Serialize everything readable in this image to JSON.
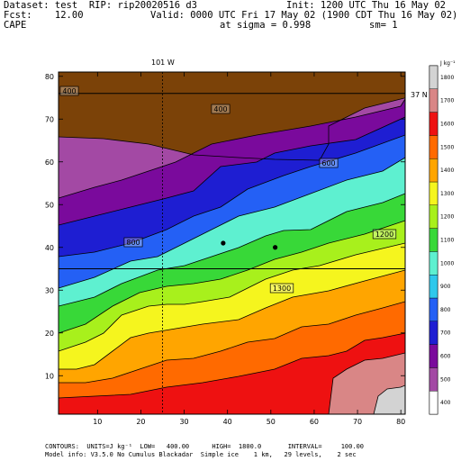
{
  "header": {
    "dataset_label": "Dataset:",
    "dataset": "test",
    "rip_label": "RIP:",
    "rip": "rip20020516 d3",
    "init": "Init: 1200 UTC Thu 16 May 02",
    "fcst_label": "Fcst:",
    "fcst": "12.00",
    "valid": "Valid: 0000 UTC Fri 17 May 02 (1900 CDT Thu 16 May 02)",
    "field": "CAPE",
    "sigma": "at sigma = 0.998",
    "sm": "sm= 1"
  },
  "footer": {
    "contours": "CONTOURS:  UNITS=J kg⁻¹  LOW=   400.00      HIGH=  1800.0       INTERVAL=     100.00",
    "model_info": "Model info: V3.5.0 No Cumulus Blackadar  Simple ice    1 km,   29 levels,    2 sec"
  },
  "map_labels": {
    "lon_label": "101 W",
    "lat_label": "37 N",
    "contour_labels": [
      "400",
      "400",
      "600",
      "800",
      "1200",
      "1300"
    ]
  },
  "chart_data": {
    "type": "heatmap",
    "title": "CAPE",
    "xlabel": "",
    "ylabel": "",
    "xlim": [
      1,
      81
    ],
    "ylim": [
      1,
      81
    ],
    "xticks": [
      10,
      20,
      30,
      40,
      50,
      60,
      70,
      80
    ],
    "yticks": [
      10,
      20,
      30,
      40,
      50,
      60,
      70,
      80
    ],
    "colorbar": {
      "units": "J kg⁻¹",
      "ticks": [
        400,
        500,
        600,
        700,
        800,
        900,
        1000,
        1100,
        1200,
        1300,
        1400,
        1500,
        1600,
        1700,
        1800
      ],
      "colors": [
        "#ffffff",
        "#a349a4",
        "#7a0a9c",
        "#1e1ed2",
        "#2460f5",
        "#2fc8ec",
        "#5ef0d0",
        "#38d838",
        "#a8f01c",
        "#f5f51e",
        "#ffa500",
        "#ff6a00",
        "#ee1111",
        "#d98686",
        "#d3d3d3"
      ]
    },
    "bands": [
      {
        "level": 400,
        "color": "#7b4208"
      },
      {
        "level": 500,
        "color": "#a349a4"
      },
      {
        "level": 700,
        "color": "#7a0a9c"
      },
      {
        "level": 800,
        "color": "#1e1ed2"
      },
      {
        "level": 900,
        "color": "#2460f5"
      },
      {
        "level": 1000,
        "color": "#5ef0d0"
      },
      {
        "level": 1100,
        "color": "#38d838"
      },
      {
        "level": 1200,
        "color": "#a8f01c"
      },
      {
        "level": 1300,
        "color": "#f5f51e"
      },
      {
        "level": 1400,
        "color": "#ffa500"
      },
      {
        "level": 1500,
        "color": "#ff6a00"
      },
      {
        "level": 1600,
        "color": "#ee1111"
      },
      {
        "level": 1700,
        "color": "#d98686"
      },
      {
        "level": 1800,
        "color": "#d3d3d3"
      }
    ],
    "reference_lines": {
      "lon_x": 25,
      "lat_y": 35
    },
    "markers": [
      {
        "x": 39,
        "y": 41
      },
      {
        "x": 51,
        "y": 40
      }
    ]
  }
}
